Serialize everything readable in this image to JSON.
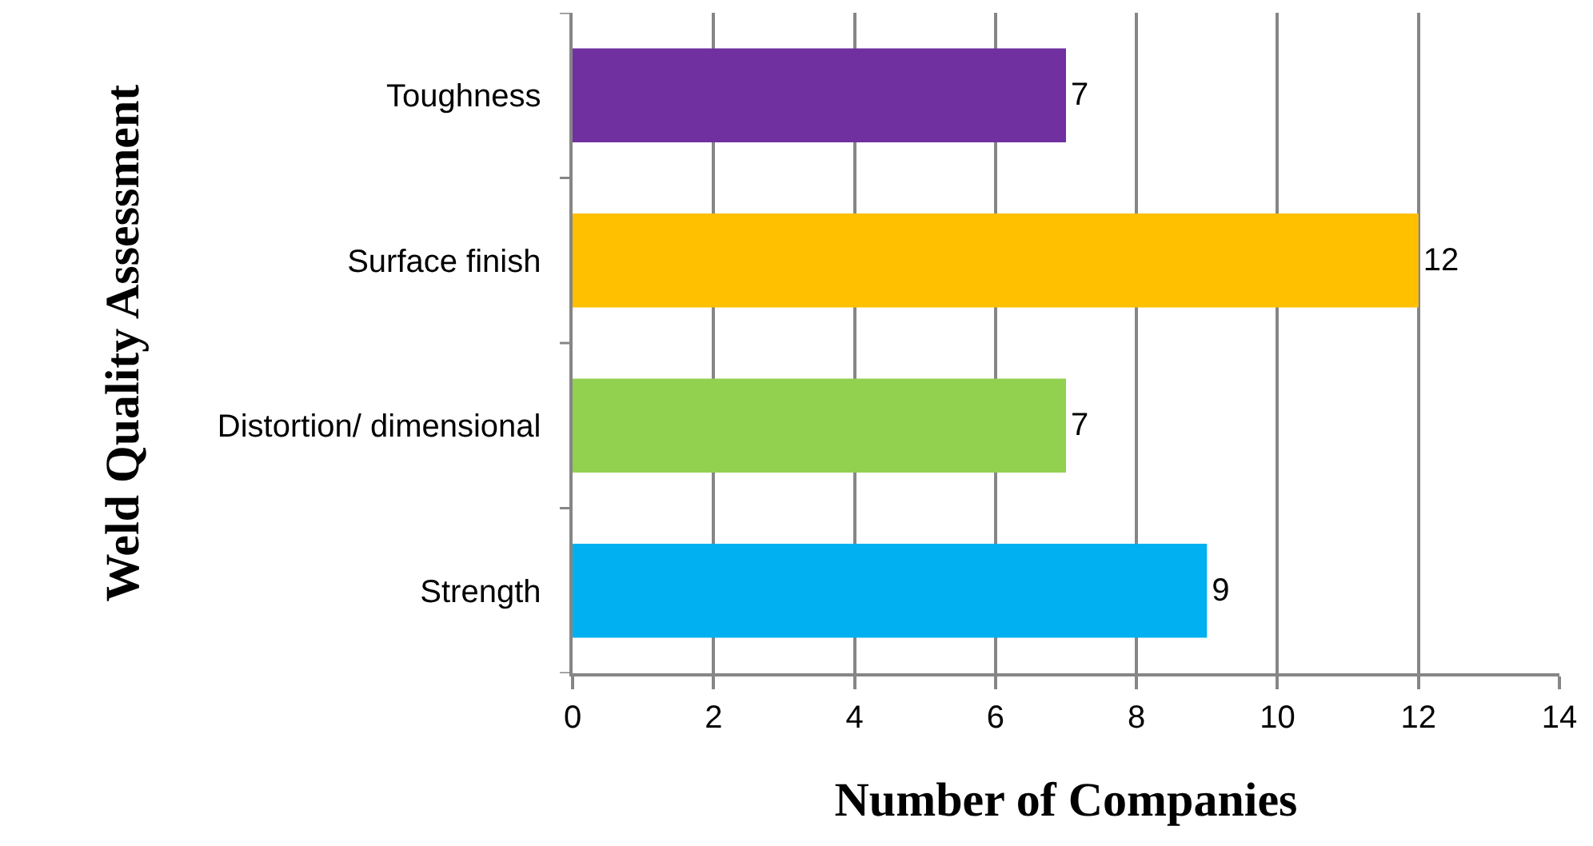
{
  "chart_data": {
    "type": "bar",
    "orientation": "horizontal",
    "xlabel": "Number of Companies",
    "ylabel": "Weld Quality Assessment",
    "categories": [
      "Toughness",
      "Surface finish",
      "Distortion/ dimensional",
      "Strength"
    ],
    "values": [
      7,
      12,
      7,
      9
    ],
    "colors": [
      "#7030a0",
      "#ffc000",
      "#92d050",
      "#00b0f0"
    ],
    "xlim": [
      0,
      14
    ],
    "xticks": [
      0,
      2,
      4,
      6,
      8,
      10,
      12,
      14
    ],
    "grid": "x",
    "data_labels": true
  }
}
